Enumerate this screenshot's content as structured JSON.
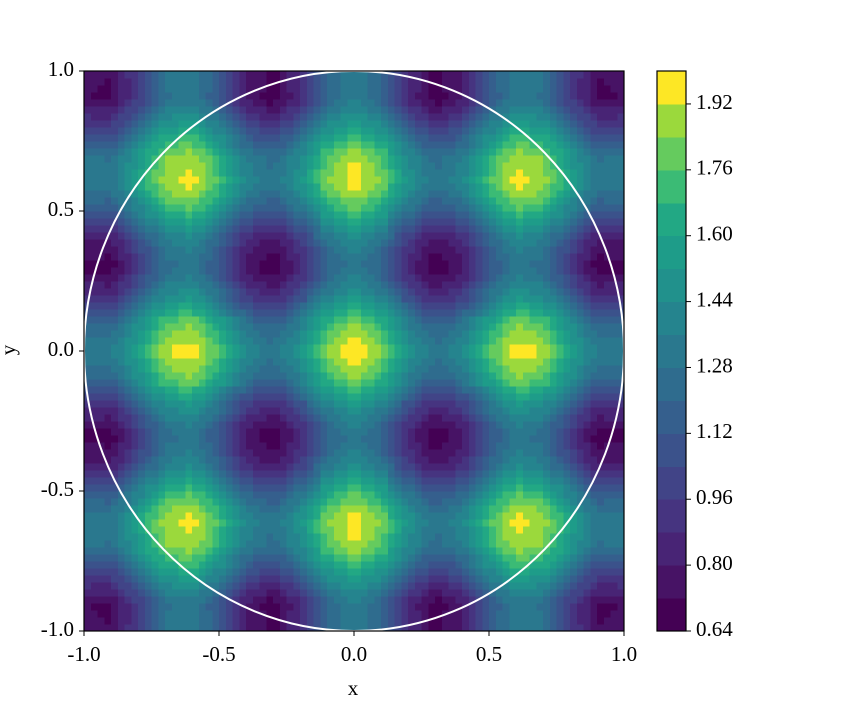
{
  "chart_data": {
    "type": "contourf",
    "xlabel": "x",
    "ylabel": "y",
    "xlim": [
      -1.0,
      1.0
    ],
    "ylim": [
      -1.0,
      1.0
    ],
    "xticks": [
      {
        "value": -1.0,
        "label": "-1.0"
      },
      -0.5,
      {
        "value": 0.0,
        "label": "0.0"
      },
      0.5,
      {
        "value": 1.0,
        "label": "1.0"
      }
    ],
    "yticks": [
      {
        "value": -1.0,
        "label": "-1.0"
      },
      -0.5,
      {
        "value": 0.0,
        "label": "0.0"
      },
      0.5,
      {
        "value": 1.0,
        "label": "1.0"
      }
    ],
    "x": [
      -1.0,
      -0.9,
      -0.8,
      -0.7,
      -0.6,
      -0.5,
      -0.4,
      -0.3,
      -0.2,
      -0.1,
      0.0,
      0.1,
      0.2,
      0.3,
      0.4,
      0.5,
      0.6,
      0.7,
      0.8,
      0.9,
      1.0
    ],
    "y": [
      -1.0,
      -0.9,
      -0.8,
      -0.7,
      -0.6,
      -0.5,
      -0.4,
      -0.3,
      -0.2,
      -0.1,
      0.0,
      0.1,
      0.2,
      0.3,
      0.4,
      0.5,
      0.6,
      0.7,
      0.8,
      0.9,
      1.0
    ],
    "z": [
      [
        0.75,
        0.725,
        0.985,
        1.291,
        1.361,
        1.132,
        0.813,
        0.698,
        0.894,
        1.219,
        1.375,
        1.219,
        0.894,
        0.698,
        0.813,
        1.132,
        1.361,
        1.291,
        0.985,
        0.725,
        0.75
      ],
      [
        0.725,
        0.7,
        0.96,
        1.266,
        1.336,
        1.107,
        0.788,
        0.673,
        0.869,
        1.194,
        1.35,
        1.194,
        0.869,
        0.673,
        0.788,
        1.107,
        1.336,
        1.266,
        0.96,
        0.7,
        0.725
      ],
      [
        0.985,
        0.96,
        1.22,
        1.526,
        1.596,
        1.367,
        1.048,
        0.933,
        1.129,
        1.454,
        1.61,
        1.454,
        1.129,
        0.933,
        1.048,
        1.367,
        1.596,
        1.526,
        1.22,
        0.96,
        0.985
      ],
      [
        1.291,
        1.266,
        1.526,
        1.832,
        1.902,
        1.673,
        1.354,
        1.239,
        1.435,
        1.76,
        1.916,
        1.76,
        1.435,
        1.239,
        1.354,
        1.673,
        1.902,
        1.832,
        1.526,
        1.266,
        1.291
      ],
      [
        1.361,
        1.336,
        1.596,
        1.902,
        1.972,
        1.743,
        1.424,
        1.309,
        1.505,
        1.83,
        1.986,
        1.83,
        1.505,
        1.309,
        1.424,
        1.743,
        1.972,
        1.902,
        1.596,
        1.336,
        1.361
      ],
      [
        1.132,
        1.107,
        1.367,
        1.673,
        1.743,
        1.514,
        1.195,
        1.08,
        1.276,
        1.601,
        1.757,
        1.601,
        1.276,
        1.08,
        1.195,
        1.514,
        1.743,
        1.673,
        1.367,
        1.107,
        1.132
      ],
      [
        0.813,
        0.788,
        1.048,
        1.354,
        1.424,
        1.195,
        0.876,
        0.761,
        0.957,
        1.282,
        1.438,
        1.282,
        0.957,
        0.761,
        0.876,
        1.195,
        1.424,
        1.354,
        1.048,
        0.788,
        0.813
      ],
      [
        0.698,
        0.673,
        0.933,
        1.239,
        1.309,
        1.08,
        0.761,
        0.646,
        0.842,
        1.167,
        1.323,
        1.167,
        0.842,
        0.646,
        0.761,
        1.08,
        1.309,
        1.239,
        0.933,
        0.673,
        0.698
      ],
      [
        0.894,
        0.869,
        1.129,
        1.435,
        1.505,
        1.276,
        0.957,
        0.842,
        1.038,
        1.363,
        1.519,
        1.363,
        1.038,
        0.842,
        0.957,
        1.276,
        1.505,
        1.435,
        1.129,
        0.869,
        0.894
      ],
      [
        1.219,
        1.194,
        1.454,
        1.76,
        1.83,
        1.601,
        1.282,
        1.167,
        1.363,
        1.688,
        1.844,
        1.688,
        1.363,
        1.167,
        1.282,
        1.601,
        1.83,
        1.76,
        1.454,
        1.194,
        1.219
      ],
      [
        1.375,
        1.35,
        1.61,
        1.916,
        1.986,
        1.757,
        1.438,
        1.323,
        1.519,
        1.844,
        2.0,
        1.844,
        1.519,
        1.323,
        1.438,
        1.757,
        1.986,
        1.916,
        1.61,
        1.35,
        1.375
      ],
      [
        1.219,
        1.194,
        1.454,
        1.76,
        1.83,
        1.601,
        1.282,
        1.167,
        1.363,
        1.688,
        1.844,
        1.688,
        1.363,
        1.167,
        1.282,
        1.601,
        1.83,
        1.76,
        1.454,
        1.194,
        1.219
      ],
      [
        0.894,
        0.869,
        1.129,
        1.435,
        1.505,
        1.276,
        0.957,
        0.842,
        1.038,
        1.363,
        1.519,
        1.363,
        1.038,
        0.842,
        0.957,
        1.276,
        1.505,
        1.435,
        1.129,
        0.869,
        0.894
      ],
      [
        0.698,
        0.673,
        0.933,
        1.239,
        1.309,
        1.08,
        0.761,
        0.646,
        0.842,
        1.167,
        1.323,
        1.167,
        0.842,
        0.646,
        0.761,
        1.08,
        1.309,
        1.239,
        0.933,
        0.673,
        0.698
      ],
      [
        0.813,
        0.788,
        1.048,
        1.354,
        1.424,
        1.195,
        0.876,
        0.761,
        0.957,
        1.282,
        1.438,
        1.282,
        0.957,
        0.761,
        0.876,
        1.195,
        1.424,
        1.354,
        1.048,
        0.788,
        0.813
      ],
      [
        1.132,
        1.107,
        1.367,
        1.673,
        1.743,
        1.514,
        1.195,
        1.08,
        1.276,
        1.601,
        1.757,
        1.601,
        1.276,
        1.08,
        1.195,
        1.514,
        1.743,
        1.673,
        1.367,
        1.107,
        1.132
      ],
      [
        1.361,
        1.336,
        1.596,
        1.902,
        1.972,
        1.743,
        1.424,
        1.309,
        1.505,
        1.83,
        1.986,
        1.83,
        1.505,
        1.309,
        1.424,
        1.743,
        1.972,
        1.902,
        1.596,
        1.336,
        1.361
      ],
      [
        1.291,
        1.266,
        1.526,
        1.832,
        1.902,
        1.673,
        1.354,
        1.239,
        1.435,
        1.76,
        1.916,
        1.76,
        1.435,
        1.239,
        1.354,
        1.673,
        1.902,
        1.832,
        1.526,
        1.266,
        1.291
      ],
      [
        0.985,
        0.96,
        1.22,
        1.526,
        1.596,
        1.367,
        1.048,
        0.933,
        1.129,
        1.454,
        1.61,
        1.454,
        1.129,
        0.933,
        1.048,
        1.367,
        1.596,
        1.526,
        1.22,
        0.96,
        0.985
      ],
      [
        0.725,
        0.7,
        0.96,
        1.266,
        1.336,
        1.107,
        0.788,
        0.673,
        0.869,
        1.194,
        1.35,
        1.194,
        0.869,
        0.673,
        0.788,
        1.107,
        1.336,
        1.266,
        0.96,
        0.7,
        0.725
      ],
      [
        0.75,
        0.725,
        0.985,
        1.291,
        1.361,
        1.132,
        0.813,
        0.698,
        0.894,
        1.219,
        1.375,
        1.219,
        0.894,
        0.698,
        0.813,
        1.132,
        1.361,
        1.291,
        0.985,
        0.725,
        0.75
      ]
    ],
    "levels": [
      0.64,
      0.72,
      0.8,
      0.88,
      0.96,
      1.04,
      1.12,
      1.2,
      1.28,
      1.36,
      1.44,
      1.52,
      1.6,
      1.68,
      1.76,
      1.84,
      1.92,
      2.0
    ],
    "colors": [
      "#440154",
      "#471365",
      "#482475",
      "#463480",
      "#414487",
      "#3b528b",
      "#355f8d",
      "#2f6c8e",
      "#2a788e",
      "#25848e",
      "#21918c",
      "#1e9c89",
      "#22a884",
      "#3bbb75",
      "#65cb5e",
      "#9bd93c",
      "#fde725"
    ],
    "colorbar_ticks": [
      0.64,
      {
        "value": 0.8,
        "label": "0.80"
      },
      0.96,
      1.12,
      1.28,
      1.44,
      {
        "value": 1.6,
        "label": "1.60"
      },
      1.76,
      1.92
    ],
    "circle": {
      "center": [
        0,
        0
      ],
      "radius": 1,
      "color": "#ffffff"
    }
  }
}
